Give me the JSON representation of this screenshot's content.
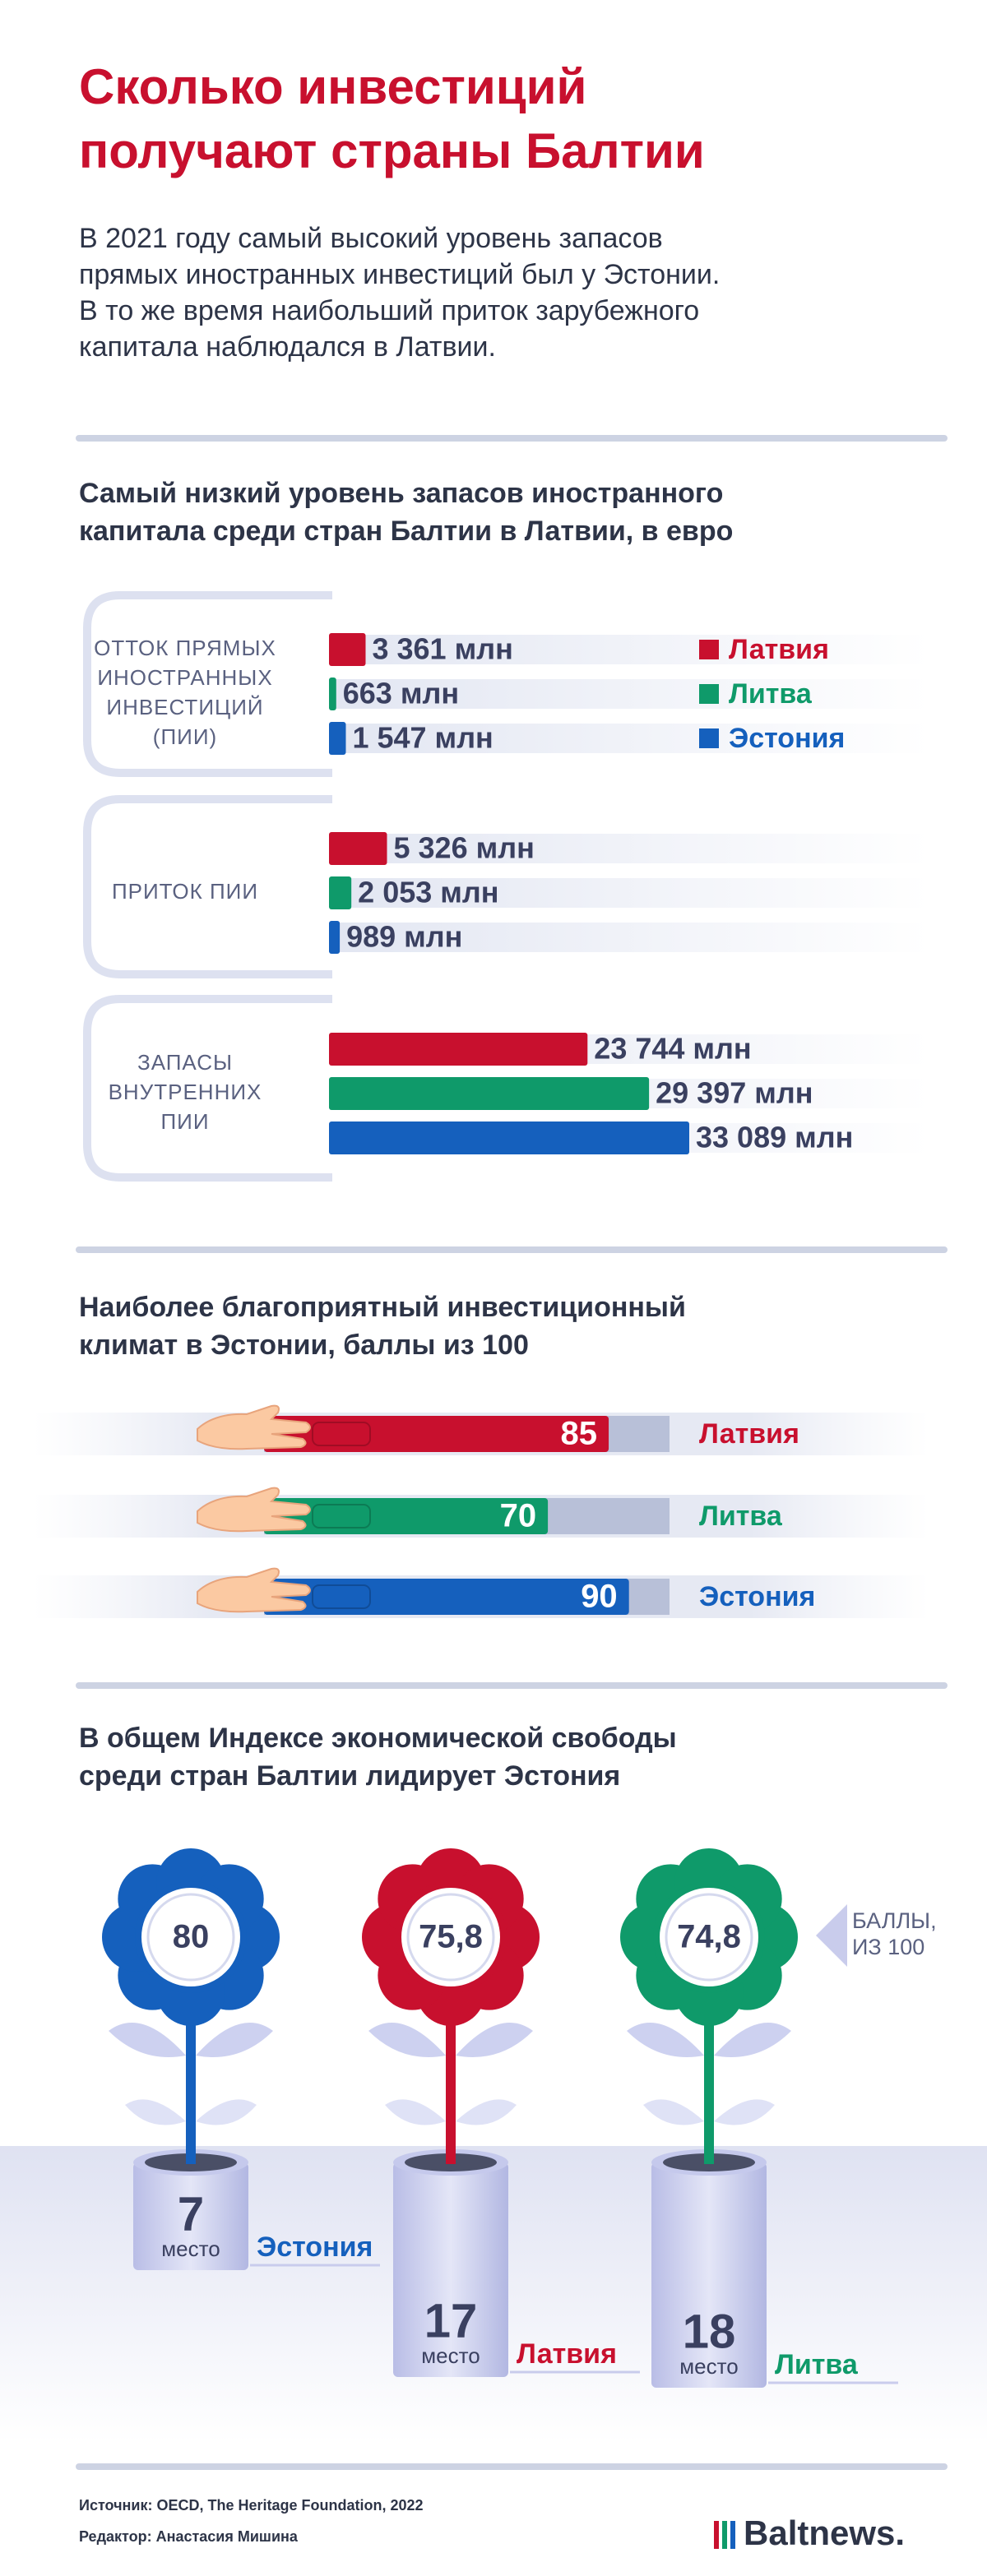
{
  "title": [
    "Сколько инвестиций",
    "получают страны Балтии"
  ],
  "intro": [
    "В 2021 году самый высокий уровень запасов",
    "прямых иностранных инвестиций был у Эстонии.",
    "В то же время наибольший приток зарубежного",
    "капитала наблюдался в Латвии."
  ],
  "chart_data": [
    {
      "type": "grouped-hbar",
      "title": [
        "Самый низкий уровень запасов иностранного",
        "капитала среди стран Балтии в Латвии, в евро"
      ],
      "categories": [
        [
          "ОТТОК ПРЯМЫХ",
          "ИНОСТРАННЫХ",
          "ИНВЕСТИЦИЙ",
          "(ПИИ)"
        ],
        [
          "ПРИТОК ПИИ"
        ],
        [
          "ЗАПАСЫ",
          "ВНУТРЕННИХ",
          "ПИИ"
        ]
      ],
      "series": [
        {
          "name": "Латвия",
          "color": "#c8102e",
          "values": [
            3361,
            5326,
            23744
          ],
          "value_labels": [
            "3 361 млн",
            "5 326  млн",
            "23 744 млн"
          ]
        },
        {
          "name": "Литва",
          "color": "#0f9a6a",
          "values": [
            663,
            2053,
            29397
          ],
          "value_labels": [
            "663 млн",
            "2 053 млн",
            "29 397 млн"
          ]
        },
        {
          "name": "Эстония",
          "color": "#1560bd",
          "values": [
            1547,
            989,
            33089
          ],
          "value_labels": [
            "1 547 млн",
            "989 млн",
            "33 089 млн"
          ]
        }
      ]
    },
    {
      "type": "hbar",
      "title": [
        "Наиболее благоприятный инвестиционный",
        "климат в Эстонии, баллы из 100"
      ],
      "categories": [
        "Латвия",
        "Литва",
        "Эстония"
      ],
      "values": [
        85,
        70,
        90
      ],
      "colors": [
        "#c8102e",
        "#0f9a6a",
        "#1560bd"
      ],
      "xlim": [
        0,
        100
      ]
    },
    {
      "type": "flower",
      "title": [
        "В общем Индексе экономической свободы",
        "среди стран Балтии лидирует Эстония"
      ],
      "categories": [
        "Эстония",
        "Латвия",
        "Литва"
      ],
      "values": [
        80,
        75.8,
        74.8
      ],
      "value_labels": [
        "80",
        "75,8",
        "74,8"
      ],
      "ranks": [
        7,
        17,
        18
      ],
      "rank_label": "место",
      "colors": [
        "#1560bd",
        "#c8102e",
        "#0f9a6a"
      ],
      "note": [
        "БАЛЛЫ,",
        "ИЗ 100"
      ]
    }
  ],
  "footer": {
    "source": "Источник: OECD, The Heritage Foundation, 2022",
    "editor": "Редактор: Анастасия Мишина",
    "logo": "Baltnews."
  }
}
